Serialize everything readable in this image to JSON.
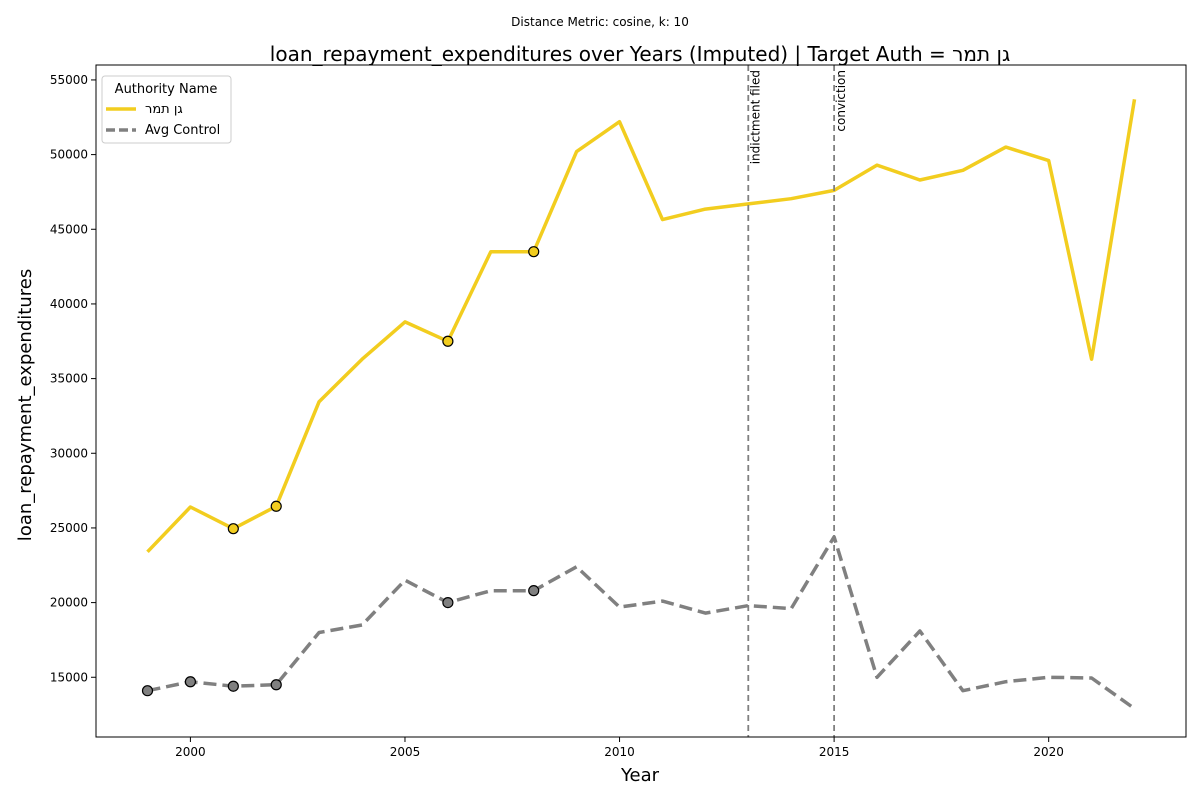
{
  "chart_data": {
    "type": "line",
    "suptitle": "Distance Metric: cosine, k: 10",
    "title": "loan_repayment_expenditures over Years (Imputed) | Target Auth = גן תמר",
    "xlabel": "Year",
    "ylabel": "loan_repayment_expenditures",
    "xlim": [
      1997.8,
      2023.2
    ],
    "ylim": [
      11000,
      56000
    ],
    "xticks": [
      2000,
      2005,
      2010,
      2015,
      2020
    ],
    "yticks": [
      15000,
      20000,
      25000,
      30000,
      35000,
      40000,
      45000,
      50000,
      55000
    ],
    "grid": false,
    "legend": {
      "title": "Authority Name",
      "placement": "top-left"
    },
    "x": [
      1999,
      2000,
      2001,
      2002,
      2003,
      2004,
      2005,
      2006,
      2007,
      2008,
      2009,
      2010,
      2011,
      2012,
      2013,
      2014,
      2015,
      2016,
      2017,
      2018,
      2019,
      2020,
      2021,
      2022
    ],
    "series": [
      {
        "name": "גן תמר",
        "color": "#f2cd1f",
        "style": "solid",
        "values": [
          23400,
          26400,
          24950,
          26450,
          33450,
          36300,
          38800,
          37500,
          43500,
          43500,
          50200,
          52200,
          45650,
          46350,
          46700,
          47050,
          47600,
          49300,
          48300,
          48950,
          50500,
          49600,
          36300,
          53700
        ],
        "imputed_x": [
          2001,
          2002,
          2006,
          2008
        ]
      },
      {
        "name": "Avg Control",
        "color": "#808080",
        "style": "dashed",
        "values": [
          14100,
          14700,
          14400,
          14500,
          18000,
          18500,
          21500,
          20000,
          20800,
          20800,
          22400,
          19700,
          20100,
          19300,
          19800,
          19600,
          24400,
          15000,
          18100,
          14100,
          14700,
          15000,
          14950,
          12900
        ],
        "imputed_x": [
          1999,
          2000,
          2001,
          2002,
          2006,
          2008
        ]
      }
    ],
    "events": [
      {
        "x": 2013,
        "label": "indictment filed"
      },
      {
        "x": 2015,
        "label": "conviction"
      }
    ]
  }
}
